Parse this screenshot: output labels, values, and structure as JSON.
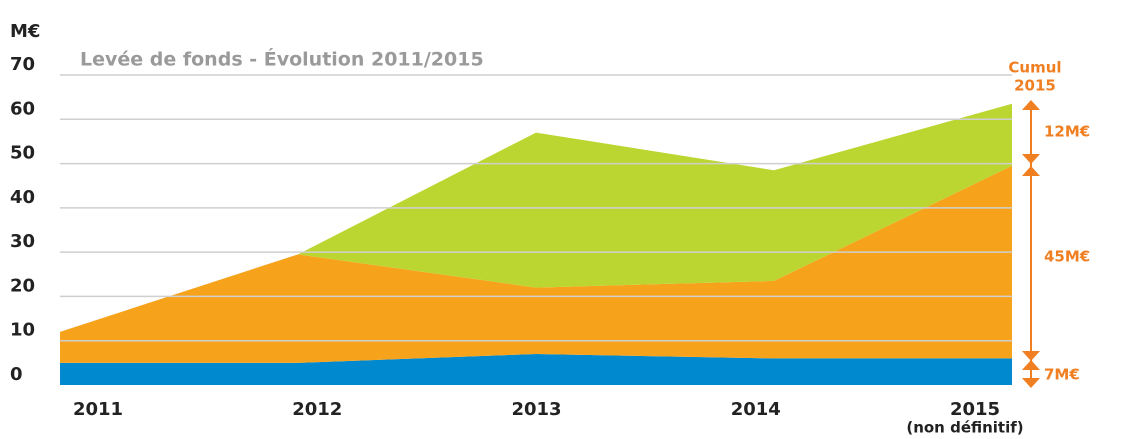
{
  "chart_data": {
    "type": "stacked_area",
    "title": "Levée de fonds - Évolution 2011/2015",
    "y_label": "M€",
    "categories": [
      "2011",
      "2012",
      "2013",
      "2014",
      "2015"
    ],
    "note": "(non définitif)",
    "series": [
      {
        "name": null,
        "color": "#0089cf",
        "values": [
          5,
          5,
          7,
          6,
          6
        ]
      },
      {
        "name": null,
        "color": "#f7a21b",
        "values": [
          7,
          24.5,
          15,
          17.5,
          43.5
        ]
      },
      {
        "name": null,
        "color": "#bcd631",
        "values": [
          0,
          0,
          35,
          25,
          14
        ]
      }
    ],
    "ylim": [
      0,
      70
    ],
    "yticks": [
      0,
      10,
      20,
      30,
      40,
      50,
      60,
      70
    ],
    "grid": true,
    "annotations": {
      "cumul": "Cumul",
      "cumul_year": "2015",
      "top": "12M€",
      "middle": "45M€",
      "bottom": "7M€"
    }
  }
}
